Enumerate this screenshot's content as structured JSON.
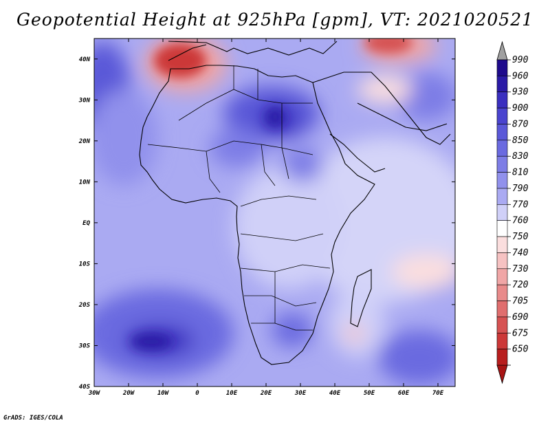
{
  "title": "Geopotential Height at 925hPa [gpm], VT: 2021020521",
  "credit": "GrADS: IGES/COLA",
  "map": {
    "lon_range": [
      -30,
      75
    ],
    "lat_range": [
      -40,
      45
    ],
    "lon_ticks": [
      {
        "value": -30,
        "label": "30W"
      },
      {
        "value": -20,
        "label": "20W"
      },
      {
        "value": -10,
        "label": "10W"
      },
      {
        "value": 0,
        "label": "0"
      },
      {
        "value": 10,
        "label": "10E"
      },
      {
        "value": 20,
        "label": "20E"
      },
      {
        "value": 30,
        "label": "30E"
      },
      {
        "value": 40,
        "label": "40E"
      },
      {
        "value": 50,
        "label": "50E"
      },
      {
        "value": 60,
        "label": "60E"
      },
      {
        "value": 70,
        "label": "70E"
      }
    ],
    "lat_ticks": [
      {
        "value": 40,
        "label": "40N"
      },
      {
        "value": 30,
        "label": "30N"
      },
      {
        "value": 20,
        "label": "20N"
      },
      {
        "value": 10,
        "label": "10N"
      },
      {
        "value": 0,
        "label": "EQ"
      },
      {
        "value": -10,
        "label": "10S"
      },
      {
        "value": -20,
        "label": "20S"
      },
      {
        "value": -30,
        "label": "30S"
      },
      {
        "value": -40,
        "label": "40S"
      }
    ]
  },
  "colorbar": {
    "levels": [
      {
        "label": "990",
        "color": "#1e0a8c"
      },
      {
        "label": "960",
        "color": "#2a1aa6"
      },
      {
        "label": "930",
        "color": "#3a2fbf"
      },
      {
        "label": "900",
        "color": "#4a44cf"
      },
      {
        "label": "870",
        "color": "#5a58d8"
      },
      {
        "label": "850",
        "color": "#6a6ae0"
      },
      {
        "label": "830",
        "color": "#7d7de6"
      },
      {
        "label": "810",
        "color": "#9191ec"
      },
      {
        "label": "790",
        "color": "#aaaaf2"
      },
      {
        "label": "770",
        "color": "#d0d0f8"
      },
      {
        "label": "760",
        "color": "#ffffff"
      },
      {
        "label": "750",
        "color": "#fbdede"
      },
      {
        "label": "740",
        "color": "#f6c2c2"
      },
      {
        "label": "730",
        "color": "#f0a6a6"
      },
      {
        "label": "720",
        "color": "#e88a8a"
      },
      {
        "label": "705",
        "color": "#e06e6e"
      },
      {
        "label": "690",
        "color": "#d65252"
      },
      {
        "label": "675",
        "color": "#cc3838"
      },
      {
        "label": "650",
        "color": "#b81e1e"
      }
    ],
    "top_arrow_color": "#a0a0a0",
    "bottom_arrow_color": "#a81414"
  }
}
